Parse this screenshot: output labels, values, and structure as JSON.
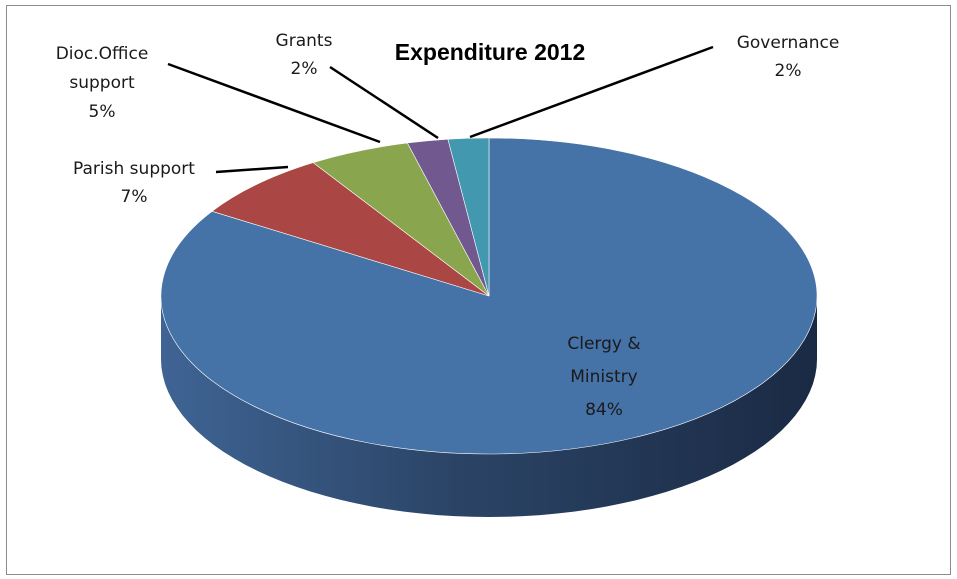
{
  "chart_data": {
    "type": "pie",
    "title": "Expenditure 2012",
    "slices": [
      {
        "name": "Clergy & Ministry",
        "value": 84,
        "label_lines": [
          "Clergy &",
          "Ministry"
        ],
        "pct_label": "84%",
        "color": "#4572a7"
      },
      {
        "name": "Parish support",
        "value": 7,
        "label_lines": [
          "Parish support"
        ],
        "pct_label": "7%",
        "color": "#aa4643"
      },
      {
        "name": "Dioc.Office support",
        "value": 5,
        "label_lines": [
          "Dioc.Office",
          "support"
        ],
        "pct_label": "5%",
        "color": "#89a54e"
      },
      {
        "name": "Grants",
        "value": 2,
        "label_lines": [
          "Grants"
        ],
        "pct_label": "2%",
        "color": "#71588f"
      },
      {
        "name": "Governance",
        "value": 2,
        "label_lines": [
          "Governance"
        ],
        "pct_label": "2%",
        "color": "#4198af"
      }
    ],
    "legend": "none",
    "style": "3d-pie"
  }
}
